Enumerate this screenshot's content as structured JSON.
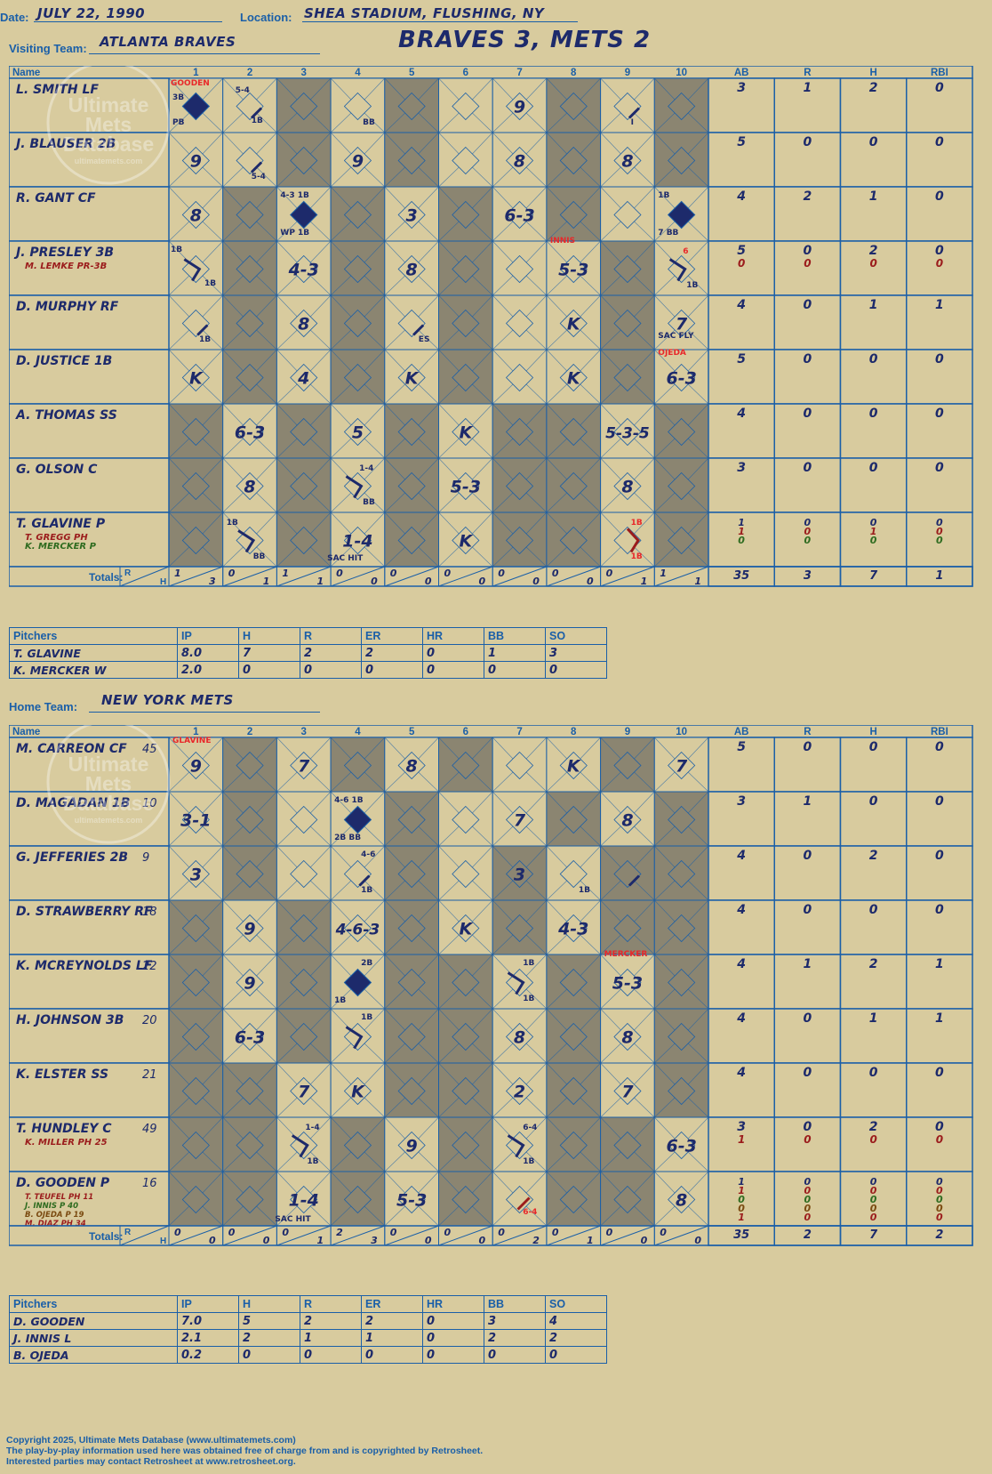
{
  "header": {
    "date_label": "Date:",
    "date": "JULY 22, 1990",
    "location_label": "Location:",
    "location": "SHEA STADIUM, FLUSHING, NY",
    "score_title": "BRAVES 3, METS 2"
  },
  "visiting": {
    "team_label": "Visiting Team:",
    "team": "ATLANTA BRAVES",
    "grid_header": [
      "Name",
      "1",
      "2",
      "3",
      "4",
      "5",
      "6",
      "7",
      "8",
      "9",
      "10",
      "AB",
      "R",
      "H",
      "RBI"
    ],
    "players": [
      {
        "name": "L. SMITH LF",
        "subs": [],
        "ab": [
          "3"
        ],
        "r": [
          "1"
        ],
        "h": [
          "2"
        ],
        "rbi": [
          "0"
        ]
      },
      {
        "name": "J. BLAUSER 2B",
        "subs": [],
        "ab": [
          "5"
        ],
        "r": [
          "0"
        ],
        "h": [
          "0"
        ],
        "rbi": [
          "0"
        ]
      },
      {
        "name": "R. GANT CF",
        "subs": [],
        "ab": [
          "4"
        ],
        "r": [
          "2"
        ],
        "h": [
          "1"
        ],
        "rbi": [
          "0"
        ]
      },
      {
        "name": "J. PRESLEY 3B",
        "subs": [
          {
            "t": "M. LEMKE PR-3B",
            "c": "dred"
          }
        ],
        "ab": [
          "5",
          "0"
        ],
        "r": [
          "0",
          "0"
        ],
        "h": [
          "2",
          "0"
        ],
        "rbi": [
          "0",
          "0"
        ]
      },
      {
        "name": "D. MURPHY RF",
        "subs": [],
        "ab": [
          "4"
        ],
        "r": [
          "0"
        ],
        "h": [
          "1"
        ],
        "rbi": [
          "1"
        ]
      },
      {
        "name": "D. JUSTICE 1B",
        "subs": [],
        "ab": [
          "5"
        ],
        "r": [
          "0"
        ],
        "h": [
          "0"
        ],
        "rbi": [
          "0"
        ]
      },
      {
        "name": "A. THOMAS SS",
        "subs": [],
        "ab": [
          "4"
        ],
        "r": [
          "0"
        ],
        "h": [
          "0"
        ],
        "rbi": [
          "0"
        ]
      },
      {
        "name": "G. OLSON C",
        "subs": [],
        "ab": [
          "3"
        ],
        "r": [
          "0"
        ],
        "h": [
          "0"
        ],
        "rbi": [
          "0"
        ]
      },
      {
        "name": "T. GLAVINE P",
        "subs": [
          {
            "t": "T. GREGG PH",
            "c": "dred"
          },
          {
            "t": "K. MERCKER P",
            "c": "green"
          }
        ],
        "ab": [
          "1",
          "1",
          "0"
        ],
        "r": [
          "0",
          "0",
          "0"
        ],
        "h": [
          "0",
          "1",
          "0"
        ],
        "rbi": [
          "0",
          "0",
          "0"
        ]
      }
    ],
    "shade": [
      [
        0,
        0,
        1,
        0,
        1,
        0,
        0,
        1,
        0,
        1
      ],
      [
        0,
        0,
        1,
        0,
        1,
        0,
        0,
        1,
        0,
        1
      ],
      [
        0,
        1,
        0,
        1,
        0,
        1,
        0,
        1,
        0,
        0
      ],
      [
        0,
        1,
        0,
        1,
        0,
        1,
        0,
        0,
        1,
        0
      ],
      [
        0,
        1,
        0,
        1,
        0,
        1,
        0,
        0,
        1,
        0
      ],
      [
        0,
        1,
        0,
        1,
        0,
        1,
        0,
        0,
        1,
        0
      ],
      [
        1,
        0,
        1,
        0,
        1,
        0,
        1,
        1,
        0,
        1
      ],
      [
        1,
        0,
        1,
        0,
        1,
        0,
        1,
        1,
        0,
        1
      ],
      [
        1,
        0,
        1,
        0,
        1,
        0,
        1,
        1,
        0,
        1
      ]
    ],
    "plays": [
      [
        "SCORED",
        "DIAG",
        "",
        "",
        "",
        "",
        "9",
        "",
        "DIAG",
        "",
        "",
        "",
        ""
      ],
      [
        "9",
        "DIAG",
        "",
        "9",
        "",
        "",
        "8",
        "",
        "8",
        "",
        ""
      ],
      [
        "8",
        "",
        "SCORED",
        "",
        "3",
        "",
        "6-3",
        "",
        "",
        "SCORED"
      ],
      [
        "PATH",
        "",
        "4-3",
        "",
        "8",
        "",
        "",
        "5-3",
        "",
        "PATH"
      ],
      [
        "DIAG",
        "",
        "8",
        "",
        "DIAG",
        "",
        "",
        "K",
        "",
        "7"
      ],
      [
        "K",
        "",
        "4",
        "",
        "K",
        "",
        "",
        "K",
        "",
        "6-3"
      ],
      [
        "",
        "6-3",
        "",
        "5",
        "",
        "K",
        "",
        "",
        "5-3-5",
        ""
      ],
      [
        "",
        "8",
        "",
        "PATH",
        "",
        "5-3",
        "",
        "",
        "8",
        ""
      ],
      [
        "",
        "PATH",
        "",
        "1-4",
        "",
        "K",
        "",
        "",
        "PATHRED",
        ""
      ]
    ],
    "notes": [
      [
        "GOODEN|red",
        "3B",
        "PB",
        "",
        "5-4",
        "1B",
        "",
        "",
        "",
        "",
        "",
        "",
        "",
        "",
        "",
        "",
        "",
        "BB",
        "",
        "",
        "",
        "",
        "",
        "I"
      ],
      [
        "",
        "",
        "",
        "",
        "5-4"
      ],
      [
        "",
        "",
        "",
        "",
        "",
        "",
        "",
        "4-3  1B",
        "WP  1B",
        "",
        "",
        "",
        "",
        "",
        "",
        "",
        "",
        "",
        "1B",
        "7    BB"
      ],
      [
        "INNIS|red",
        "1B",
        "1B",
        "",
        "",
        "",
        "",
        "",
        "",
        "",
        "6|red",
        "1B"
      ],
      [
        "",
        "1B",
        "",
        "",
        "ES",
        "",
        "",
        "",
        "",
        "",
        "SAC FLY"
      ],
      [
        "OJEDA|red"
      ],
      [],
      [
        "1-4",
        "BB"
      ],
      [
        "1B",
        "BB",
        "SAC HIT",
        "1B|red",
        "1B|red"
      ]
    ],
    "totals_label": "Totals:",
    "totals_rh": [
      "R",
      "H"
    ],
    "inning_totals": [
      [
        "1",
        "3"
      ],
      [
        "0",
        "1"
      ],
      [
        "1",
        "1"
      ],
      [
        "0",
        "0"
      ],
      [
        "0",
        "0"
      ],
      [
        "0",
        "0"
      ],
      [
        "0",
        "0"
      ],
      [
        "0",
        "0"
      ],
      [
        "0",
        "1"
      ],
      [
        "1",
        "1"
      ]
    ],
    "totals": [
      "35",
      "3",
      "7",
      "1"
    ],
    "pitcher_header": [
      "Pitchers",
      "IP",
      "H",
      "R",
      "ER",
      "HR",
      "BB",
      "SO"
    ],
    "pitchers": [
      [
        "T. GLAVINE",
        "8.0",
        "7",
        "2",
        "2",
        "0",
        "1",
        "3"
      ],
      [
        "K. MERCKER  W",
        "2.0",
        "0",
        "0",
        "0",
        "0",
        "0",
        "0"
      ]
    ]
  },
  "home": {
    "team_label": "Home Team:",
    "team": "NEW YORK METS",
    "grid_header": [
      "Name",
      "1",
      "2",
      "3",
      "4",
      "5",
      "6",
      "7",
      "8",
      "9",
      "10",
      "AB",
      "R",
      "H",
      "RBI"
    ],
    "players": [
      {
        "name": "M. CARREON CF",
        "num": "45",
        "subs": [],
        "ab": [
          "5"
        ],
        "r": [
          "0"
        ],
        "h": [
          "0"
        ],
        "rbi": [
          "0"
        ]
      },
      {
        "name": "D. MAGADAN 1B",
        "num": "10",
        "subs": [],
        "ab": [
          "3"
        ],
        "r": [
          "1"
        ],
        "h": [
          "0"
        ],
        "rbi": [
          "0"
        ]
      },
      {
        "name": "G. JEFFERIES 2B",
        "num": "9",
        "subs": [],
        "ab": [
          "4"
        ],
        "r": [
          "0"
        ],
        "h": [
          "2"
        ],
        "rbi": [
          "0"
        ]
      },
      {
        "name": "D. STRAWBERRY RF",
        "num": "18",
        "subs": [],
        "ab": [
          "4"
        ],
        "r": [
          "0"
        ],
        "h": [
          "0"
        ],
        "rbi": [
          "0"
        ]
      },
      {
        "name": "K. MCREYNOLDS LF",
        "num": "22",
        "subs": [],
        "ab": [
          "4"
        ],
        "r": [
          "1"
        ],
        "h": [
          "2"
        ],
        "rbi": [
          "1"
        ]
      },
      {
        "name": "H. JOHNSON 3B",
        "num": "20",
        "subs": [],
        "ab": [
          "4"
        ],
        "r": [
          "0"
        ],
        "h": [
          "1"
        ],
        "rbi": [
          "1"
        ]
      },
      {
        "name": "K. ELSTER SS",
        "num": "21",
        "subs": [],
        "ab": [
          "4"
        ],
        "r": [
          "0"
        ],
        "h": [
          "0"
        ],
        "rbi": [
          "0"
        ]
      },
      {
        "name": "T. HUNDLEY C",
        "num": "49",
        "subs": [
          {
            "t": "K. MILLER PH 25",
            "c": "dred"
          }
        ],
        "ab": [
          "3",
          "1"
        ],
        "r": [
          "0",
          "0"
        ],
        "h": [
          "2",
          "0"
        ],
        "rbi": [
          "0",
          "0"
        ]
      },
      {
        "name": "D. GOODEN P",
        "num": "16",
        "subs": [
          {
            "t": "T. TEUFEL PH 11",
            "c": "dred"
          },
          {
            "t": "J. INNIS P 40",
            "c": "green"
          },
          {
            "t": "B. OJEDA P 19",
            "c": "brown"
          },
          {
            "t": "M. DIAZ PH 34",
            "c": "dred"
          }
        ],
        "ab": [
          "1",
          "1",
          "0",
          "0",
          "1"
        ],
        "r": [
          "0",
          "0",
          "0",
          "0",
          "0"
        ],
        "h": [
          "0",
          "0",
          "0",
          "0",
          "0"
        ],
        "rbi": [
          "0",
          "0",
          "0",
          "0",
          "0"
        ]
      }
    ],
    "shade": [
      [
        0,
        1,
        0,
        1,
        0,
        1,
        0,
        0,
        1,
        0
      ],
      [
        0,
        1,
        0,
        0,
        1,
        0,
        0,
        1,
        0,
        1
      ],
      [
        0,
        1,
        0,
        0,
        1,
        0,
        1,
        0,
        1,
        1
      ],
      [
        1,
        0,
        1,
        0,
        1,
        0,
        1,
        0,
        1,
        1
      ],
      [
        1,
        0,
        1,
        0,
        1,
        1,
        0,
        1,
        0,
        1
      ],
      [
        1,
        0,
        1,
        0,
        1,
        1,
        0,
        1,
        0,
        1
      ],
      [
        1,
        1,
        0,
        0,
        1,
        1,
        0,
        1,
        0,
        1
      ],
      [
        1,
        1,
        0,
        1,
        0,
        1,
        0,
        1,
        1,
        0
      ],
      [
        1,
        1,
        0,
        1,
        0,
        1,
        0,
        1,
        1,
        0
      ]
    ],
    "plays": [
      [
        "9",
        "",
        "7",
        "",
        "8",
        "",
        "",
        "K",
        "",
        "7"
      ],
      [
        "3-1",
        "",
        "",
        "SCORED",
        "",
        "",
        "7",
        "",
        "8",
        ""
      ],
      [
        "3",
        "",
        "",
        "DIAG",
        "",
        "",
        "3",
        "",
        "DIAG",
        ""
      ],
      [
        "",
        "9",
        "",
        "4-6-3",
        "",
        "K",
        "",
        "4-3",
        "",
        ""
      ],
      [
        "",
        "9",
        "",
        "SCORED",
        "",
        "",
        "PATH",
        "",
        "5-3",
        ""
      ],
      [
        "",
        "6-3",
        "",
        "PATH",
        "",
        "",
        "8",
        "",
        "8",
        ""
      ],
      [
        "",
        "",
        "7",
        "K",
        "",
        "",
        "2",
        "",
        "7",
        ""
      ],
      [
        "",
        "",
        "PATH",
        "",
        "9",
        "",
        "PATH",
        "",
        "",
        "6-3"
      ],
      [
        "",
        "",
        "1-4",
        "",
        "5-3",
        "",
        "DIAGRED",
        "",
        "",
        "8"
      ]
    ],
    "notes": [
      [
        "GLAVINE|red"
      ],
      [
        "4-6 1B",
        "2B  BB"
      ],
      [
        "4-6",
        "1B",
        "1B"
      ],
      [],
      [
        "MERCKER|red",
        "2B",
        "1B",
        "1B",
        "1B"
      ],
      [
        "1B"
      ],
      [],
      [
        "1-4",
        "1B",
        "6-4",
        "1B"
      ],
      [
        "SAC HIT",
        "6-4|red"
      ]
    ],
    "totals_label": "Totals:",
    "totals_rh": [
      "R",
      "H"
    ],
    "inning_totals": [
      [
        "0",
        "0"
      ],
      [
        "0",
        "0"
      ],
      [
        "0",
        "1"
      ],
      [
        "2",
        "3"
      ],
      [
        "0",
        "0"
      ],
      [
        "0",
        "0"
      ],
      [
        "0",
        "2"
      ],
      [
        "0",
        "1"
      ],
      [
        "0",
        "0"
      ],
      [
        "0",
        "0"
      ]
    ],
    "totals": [
      "35",
      "2",
      "7",
      "2"
    ],
    "pitcher_header": [
      "Pitchers",
      "IP",
      "H",
      "R",
      "ER",
      "HR",
      "BB",
      "SO"
    ],
    "pitchers": [
      [
        "D. GOODEN",
        "7.0",
        "5",
        "2",
        "2",
        "0",
        "3",
        "4"
      ],
      [
        "J. INNIS  L",
        "2.1",
        "2",
        "1",
        "1",
        "0",
        "2",
        "2"
      ],
      [
        "B. OJEDA",
        "0.2",
        "0",
        "0",
        "0",
        "0",
        "0",
        "0"
      ]
    ]
  },
  "watermark": [
    "Ultimate",
    "Mets",
    "Database",
    "ultimatemets.com"
  ],
  "footer": [
    "Copyright 2025, Ultimate Mets Database (www.ultimatemets.com)",
    " The play-by-play information used here was obtained free of charge from and is copyrighted by Retrosheet.",
    " Interested parties may contact Retrosheet at www.retrosheet.org."
  ],
  "colors": {
    "blue": "#1a5fa8",
    "navy": "#1d2a6b",
    "tan": "#d8cb9e",
    "shade": "#8b8571",
    "red": "#e8282a"
  }
}
